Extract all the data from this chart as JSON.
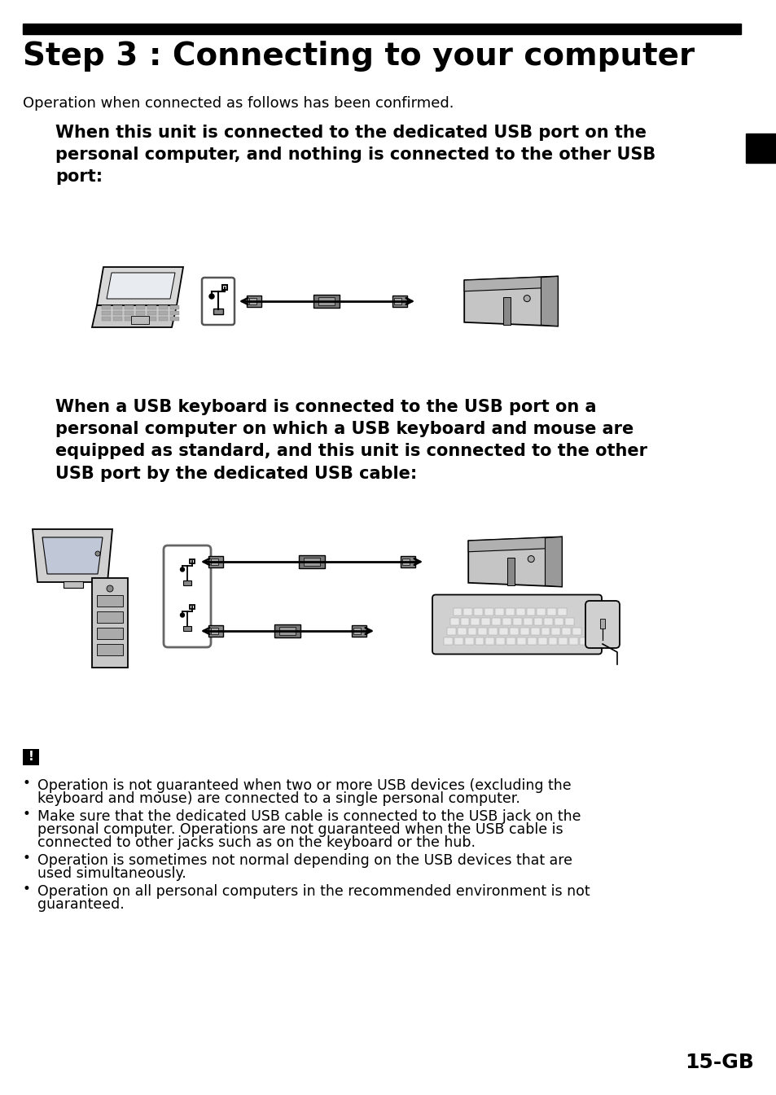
{
  "title": "Step 3 : Connecting to your computer",
  "subtitle": "Operation when connected as follows has been confirmed.",
  "section1_bold": "When this unit is connected to the dedicated USB port on the\npersonal computer, and nothing is connected to the other USB\nport:",
  "section2_bold": "When a USB keyboard is connected to the USB port on a\npersonal computer on which a USB keyboard and mouse are\nequipped as standard, and this unit is connected to the other\nUSB port by the dedicated USB cable:",
  "bullets": [
    "Operation is not guaranteed when two or more USB devices (excluding the\nkeyboard and mouse) are connected to a single personal computer.",
    "Make sure that the dedicated USB cable is connected to the USB jack on the\npersonal computer. Operations are not guaranteed when the USB cable is\nconnected to other jacks such as on the keyboard or the hub.",
    "Operation is sometimes not normal depending on the USB devices that are\nused simultaneously.",
    "Operation on all personal computers in the recommended environment is not\nguaranteed."
  ],
  "page_num": "15-GB",
  "bg_color": "#ffffff",
  "text_color": "#000000",
  "bar_color": "#000000",
  "title_fontsize": 28,
  "subtitle_fontsize": 13,
  "section_fontsize": 15,
  "bullet_fontsize": 12.5,
  "pagenum_fontsize": 18
}
